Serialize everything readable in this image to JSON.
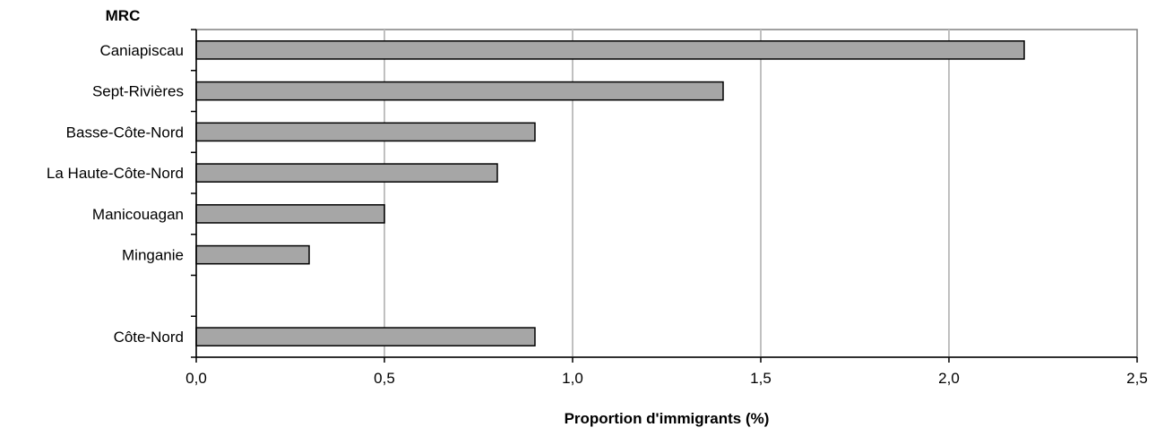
{
  "chart_data": {
    "type": "bar",
    "orientation": "horizontal",
    "categories": [
      "Caniapiscau",
      "Sept-Rivières",
      "Basse-Côte-Nord",
      "La Haute-Côte-Nord",
      "Manicouagan",
      "Minganie",
      "",
      "Côte-Nord"
    ],
    "values": [
      2.2,
      1.4,
      0.9,
      0.8,
      0.5,
      0.3,
      null,
      0.9
    ],
    "xlabel": "Proportion d'immigrants (%)",
    "ylabel": "MRC",
    "xlim": [
      0,
      2.5
    ],
    "xticks": [
      "0,0",
      "0,5",
      "1,0",
      "1,5",
      "2,0",
      "2,5"
    ],
    "grid": "vertical",
    "bar_color": "#a6a6a6",
    "bar_border_color": "#000000",
    "grid_color": "#c0c0c0",
    "frame_color": "#808080"
  }
}
